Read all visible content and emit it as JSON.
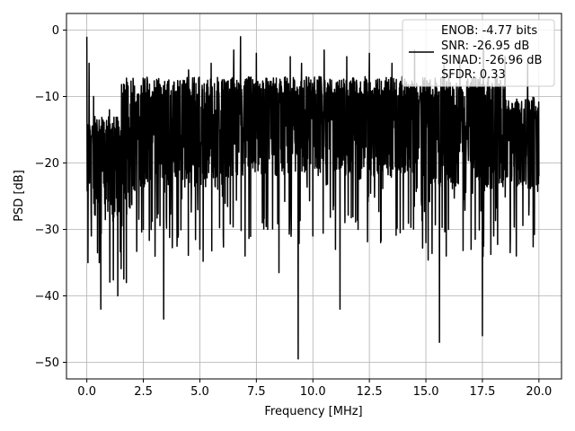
{
  "chart_data": {
    "type": "line",
    "title": "",
    "xlabel": "Frequency [MHz]",
    "ylabel": "PSD [dB]",
    "xlim": [
      -0.9,
      21.0
    ],
    "ylim": [
      -52.5,
      2.5
    ],
    "xticks": [
      0.0,
      2.5,
      5.0,
      7.5,
      10.0,
      12.5,
      15.0,
      17.5,
      20.0
    ],
    "xtick_labels": [
      "0.0",
      "2.5",
      "5.0",
      "7.5",
      "10.0",
      "12.5",
      "15.0",
      "17.5",
      "20.0"
    ],
    "yticks": [
      0,
      -10,
      -20,
      -30,
      -40,
      -50
    ],
    "ytick_labels": [
      "0",
      "−10",
      "−20",
      "−30",
      "−40",
      "−50"
    ],
    "grid": true,
    "series_color": "#000000",
    "legend_placement": "top-right",
    "legend_lines": [
      "ENOB: -4.77 bits",
      "SNR: -26.95 dB",
      "SINAD: -26.96 dB",
      "SFDR: 0.33"
    ],
    "series": [
      {
        "name": "",
        "note_points": "approximate envelope samples of a dense noisy PSD trace",
        "x": [
          0.0,
          0.05,
          0.1,
          0.2,
          0.3,
          0.55,
          0.62,
          1.0,
          1.37,
          1.6,
          1.75,
          2.0,
          2.5,
          3.0,
          3.4,
          3.5,
          4.0,
          4.5,
          5.0,
          5.5,
          6.0,
          6.5,
          6.8,
          7.0,
          7.5,
          8.0,
          8.5,
          9.0,
          9.35,
          9.5,
          10.0,
          10.5,
          11.0,
          11.2,
          11.5,
          12.0,
          12.5,
          13.0,
          13.5,
          14.0,
          14.5,
          15.0,
          15.6,
          15.8,
          16.0,
          16.5,
          17.0,
          17.5,
          17.55,
          18.0,
          18.5,
          19.0,
          19.5,
          20.0
        ],
        "y": [
          -1.0,
          -35.0,
          -5.0,
          -31.0,
          -10.0,
          -35.0,
          -42.0,
          -12.0,
          -40.0,
          -10.0,
          -38.0,
          -15.0,
          -30.0,
          -11.0,
          -43.5,
          -10.0,
          -30.0,
          -6.0,
          -33.0,
          -5.0,
          -25.0,
          -3.0,
          -1.0,
          -34.0,
          -3.5,
          -30.0,
          -36.5,
          -4.0,
          -49.5,
          -5.0,
          -31.0,
          -3.0,
          -33.0,
          -42.0,
          -4.0,
          -30.0,
          -3.5,
          -32.0,
          -5.0,
          -30.0,
          -3.0,
          -32.0,
          -47.0,
          -5.0,
          -30.0,
          -4.0,
          -33.0,
          -46.0,
          -3.0,
          -31.0,
          -4.0,
          -34.0,
          -5.0,
          -22.0
        ]
      }
    ]
  }
}
